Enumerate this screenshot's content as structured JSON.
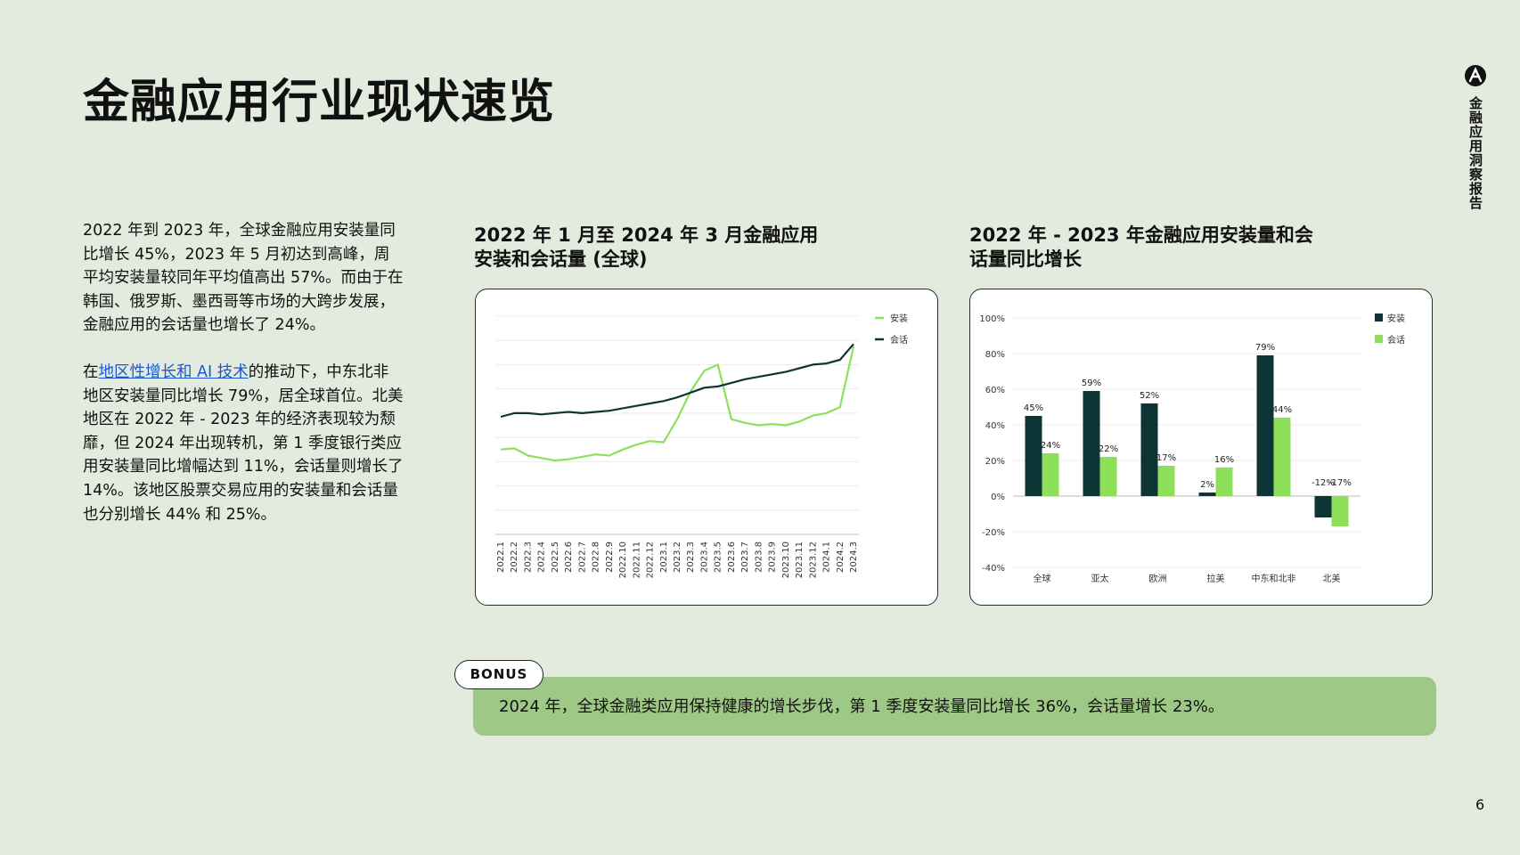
{
  "page": {
    "title": "金融应用行业现状速览",
    "side_label": "金融应用洞察报告",
    "page_number": "6",
    "colors": {
      "background": "#e3ebde",
      "dark": "#0d3536",
      "green": "#8ee05a",
      "bonus": "#9ec886",
      "link": "#1a57d6"
    }
  },
  "intro": {
    "para1": "2022 年到 2023 年，全球金融应用安装量同比增长 45%，2023 年 5 月初达到高峰，周平均安装量较同年平均值高出 57%。而由于在韩国、俄罗斯、墨西哥等市场的大跨步发展，金融应用的会话量也增长了 24%。",
    "para2_prefix": "在",
    "para2_link": "地区性增长和 AI 技术",
    "para2_suffix": "的推动下，中东北非地区安装量同比增长 79%，居全球首位。北美地区在 2022 年 - 2023 年的经济表现较为颓靡，但 2024 年出现转机，第 1 季度银行类应用安装量同比增幅达到 11%，会话量则增长了 14%。该地区股票交易应用的安装量和会话量也分别增长 44% 和 25%。"
  },
  "chart1": {
    "title": "2022 年 1 月至 2024 年 3 月金融应用安装和会话量 (全球)"
  },
  "chart2": {
    "title": "2022 年 - 2023 年金融应用安装量和会话量同比增长"
  },
  "bonus": {
    "badge": "BONUS",
    "text": "2024 年，全球金融类应用保持健康的增长步伐，第 1 季度安装量同比增长 36%，会话量增长 23%。"
  },
  "chart_data": [
    {
      "type": "line",
      "x": [
        "2022.1",
        "2022.2",
        "2022.3",
        "2022.4",
        "2022.5",
        "2022.6",
        "2022.7",
        "2022.8",
        "2022.9",
        "2022.10",
        "2022.11",
        "2022.12",
        "2023.1",
        "2023.2",
        "2023.3",
        "2023.4",
        "2023.5",
        "2023.6",
        "2023.7",
        "2023.8",
        "2023.9",
        "2023.10",
        "2023.11",
        "2023.12",
        "2024.1",
        "2024.2",
        "2024.3"
      ],
      "legend_position": "top-right",
      "grid": true,
      "series": [
        {
          "name": "安装",
          "color": "#8ee05a",
          "values": [
            0.7,
            0.71,
            0.65,
            0.63,
            0.61,
            0.62,
            0.64,
            0.66,
            0.65,
            0.7,
            0.74,
            0.77,
            0.76,
            0.95,
            1.18,
            1.35,
            1.4,
            0.95,
            0.92,
            0.9,
            0.91,
            0.9,
            0.93,
            0.98,
            1.0,
            1.05,
            1.55
          ]
        },
        {
          "name": "会话",
          "color": "#0d3536",
          "values": [
            0.97,
            1.0,
            1.0,
            0.99,
            1.0,
            1.01,
            1.0,
            1.01,
            1.02,
            1.04,
            1.06,
            1.08,
            1.1,
            1.13,
            1.17,
            1.21,
            1.22,
            1.25,
            1.28,
            1.3,
            1.32,
            1.34,
            1.37,
            1.4,
            1.41,
            1.44,
            1.57
          ]
        }
      ]
    },
    {
      "type": "bar",
      "categories": [
        "全球",
        "亚太",
        "欧洲",
        "拉美",
        "中东和北非",
        "北美"
      ],
      "ylim": [
        -40,
        100
      ],
      "y_ticks": [
        "100%",
        "80%",
        "60%",
        "40%",
        "20%",
        "0%",
        "-20%",
        "-40%"
      ],
      "legend_position": "top-right",
      "grid": true,
      "series": [
        {
          "name": "安装",
          "color": "#0d3536",
          "values": [
            45,
            59,
            52,
            2,
            79,
            -12
          ],
          "labels": [
            "45%",
            "59%",
            "52%",
            "2%",
            "79%",
            "-12%"
          ]
        },
        {
          "name": "会话",
          "color": "#8ee05a",
          "values": [
            24,
            22,
            17,
            16,
            44,
            -17
          ],
          "labels": [
            "24%",
            "22%",
            "17%",
            "16%",
            "44%",
            "-17%"
          ]
        }
      ]
    }
  ]
}
